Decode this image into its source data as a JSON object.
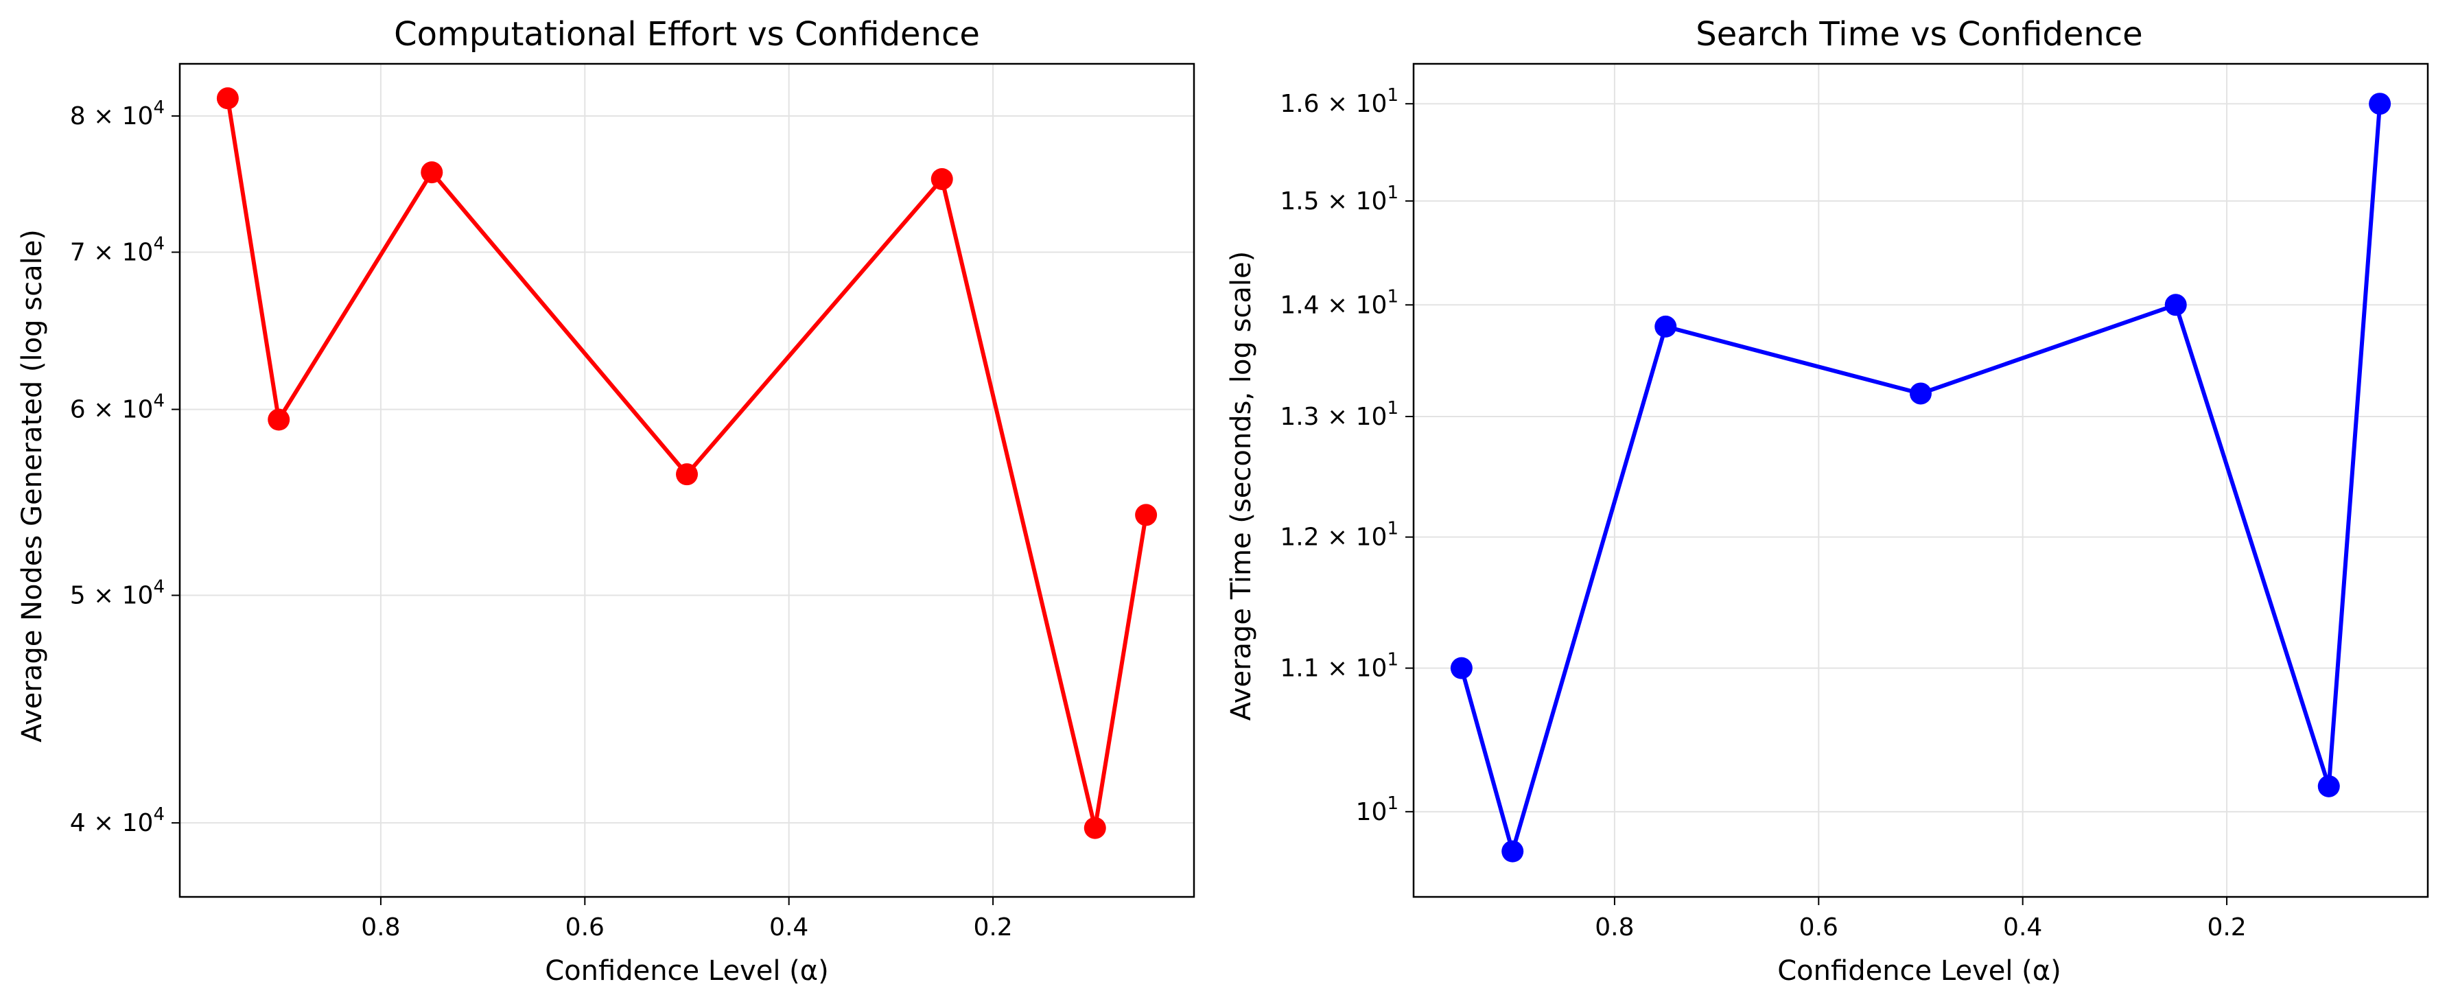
{
  "chart_data": [
    {
      "type": "line",
      "title": "Computational Effort vs Confidence",
      "xlabel": "Confidence Level (α)",
      "ylabel": "Average Nodes Generated (log scale)",
      "y_scale": "log",
      "x_inverted": true,
      "xlim": [
        0.997,
        0.003
      ],
      "ylim": [
        37200,
        84200
      ],
      "grid": true,
      "x_ticks": [
        {
          "value": 0.8,
          "label": "0.8"
        },
        {
          "value": 0.6,
          "label": "0.6"
        },
        {
          "value": 0.4,
          "label": "0.4"
        },
        {
          "value": 0.2,
          "label": "0.2"
        }
      ],
      "y_ticks": [
        {
          "value": 40000,
          "base": "4",
          "sup": "4"
        },
        {
          "value": 50000,
          "base": "5",
          "sup": "4"
        },
        {
          "value": 60000,
          "base": "6",
          "sup": "4"
        },
        {
          "value": 70000,
          "base": "7",
          "sup": "4"
        },
        {
          "value": 80000,
          "base": "8",
          "sup": "4"
        }
      ],
      "color": "#ff0000",
      "series": [
        {
          "x": [
            0.95,
            0.9,
            0.75,
            0.5,
            0.25,
            0.1,
            0.05
          ],
          "y": [
            81400,
            59400,
            75700,
            56300,
            75200,
            39800,
            54100
          ]
        }
      ]
    },
    {
      "type": "line",
      "title": "Search Time vs Confidence",
      "xlabel": "Confidence Level (α)",
      "ylabel": "Average Time (seconds, log scale)",
      "y_scale": "log",
      "x_inverted": true,
      "xlim": [
        0.997,
        0.003
      ],
      "ylim": [
        9.45,
        16.43
      ],
      "grid": true,
      "x_ticks": [
        {
          "value": 0.8,
          "label": "0.8"
        },
        {
          "value": 0.6,
          "label": "0.6"
        },
        {
          "value": 0.4,
          "label": "0.4"
        },
        {
          "value": 0.2,
          "label": "0.2"
        }
      ],
      "y_ticks": [
        {
          "value": 10,
          "base": "10",
          "sup": "1",
          "plain": true
        },
        {
          "value": 11,
          "base": "1.1",
          "sup": "1"
        },
        {
          "value": 12,
          "base": "1.2",
          "sup": "1"
        },
        {
          "value": 13,
          "base": "1.3",
          "sup": "1"
        },
        {
          "value": 14,
          "base": "1.4",
          "sup": "1"
        },
        {
          "value": 15,
          "base": "1.5",
          "sup": "1"
        },
        {
          "value": 16,
          "base": "1.6",
          "sup": "1"
        }
      ],
      "color": "#0000ff",
      "series": [
        {
          "x": [
            0.95,
            0.9,
            0.75,
            0.5,
            0.25,
            0.1,
            0.05
          ],
          "y": [
            11.0,
            9.74,
            13.8,
            13.2,
            14.0,
            10.17,
            16.0
          ]
        }
      ]
    }
  ]
}
